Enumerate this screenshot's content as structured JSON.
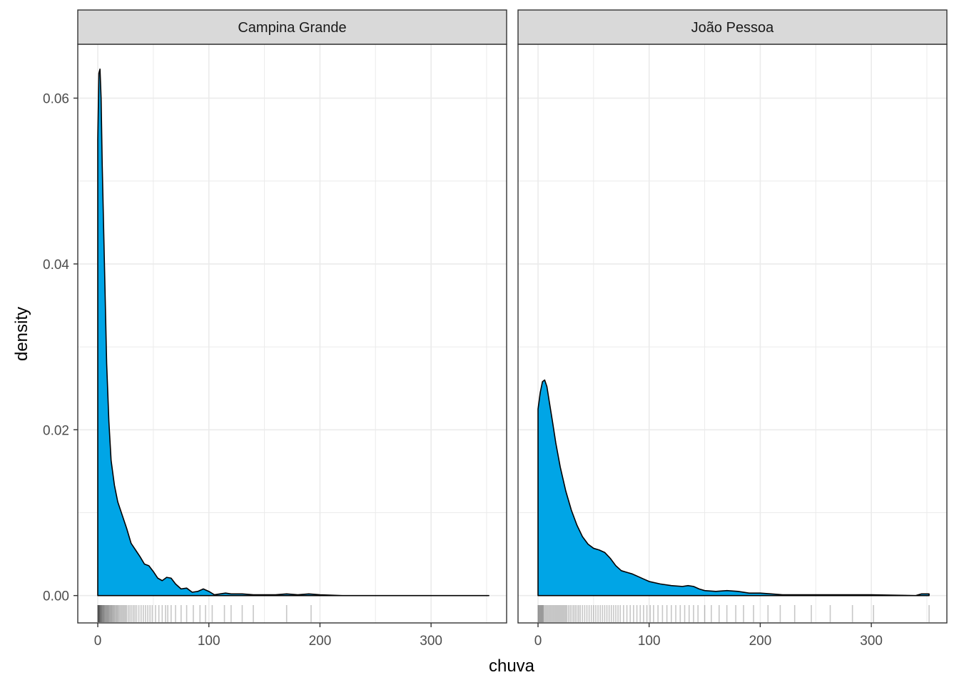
{
  "chart_data": {
    "type": "area",
    "chart_kind": "density with rug, faceted",
    "xlabel": "chuva",
    "ylabel": "density",
    "xlim": [
      -18,
      368
    ],
    "ylim": [
      -0.0033,
      0.0665
    ],
    "x_ticks": [
      0,
      100,
      200,
      300
    ],
    "y_ticks": [
      0,
      0.02,
      0.04,
      0.06
    ],
    "y_tick_labels": [
      "0.00",
      "0.02",
      "0.04",
      "0.06"
    ],
    "grid": true,
    "fill_color": "#00A5E6",
    "line_color": "#000000",
    "strip_fill": "#D9D9D9",
    "panels": [
      {
        "facet": "Campina Grande",
        "density": [
          [
            0,
            0.055
          ],
          [
            1,
            0.063
          ],
          [
            2,
            0.0635
          ],
          [
            3,
            0.06
          ],
          [
            4,
            0.052
          ],
          [
            6,
            0.04
          ],
          [
            8,
            0.028
          ],
          [
            10,
            0.021
          ],
          [
            12,
            0.0163
          ],
          [
            15,
            0.0133
          ],
          [
            18,
            0.0113
          ],
          [
            22,
            0.0097
          ],
          [
            26,
            0.0081
          ],
          [
            30,
            0.0063
          ],
          [
            34,
            0.0055
          ],
          [
            38,
            0.0047
          ],
          [
            42,
            0.0038
          ],
          [
            46,
            0.0036
          ],
          [
            50,
            0.0029
          ],
          [
            54,
            0.0021
          ],
          [
            58,
            0.0018
          ],
          [
            62,
            0.0022
          ],
          [
            66,
            0.0021
          ],
          [
            70,
            0.0014
          ],
          [
            75,
            0.0008
          ],
          [
            80,
            0.0009
          ],
          [
            85,
            0.0004
          ],
          [
            90,
            0.0005
          ],
          [
            95,
            0.0008
          ],
          [
            100,
            0.0005
          ],
          [
            105,
            0.0001
          ],
          [
            110,
            0.0002
          ],
          [
            115,
            0.0003
          ],
          [
            120,
            0.0002
          ],
          [
            130,
            0.0002
          ],
          [
            140,
            0.0001
          ],
          [
            160,
            0.0001
          ],
          [
            170,
            0.0002
          ],
          [
            180,
            0.0001
          ],
          [
            190,
            0.0002
          ],
          [
            200,
            0.0001
          ],
          [
            220,
            0.0
          ],
          [
            260,
            0.0
          ],
          [
            300,
            0.0
          ],
          [
            352,
            0.0
          ]
        ],
        "rug": [
          0,
          0.2,
          0.4,
          0.6,
          0.8,
          1,
          1.2,
          1.5,
          1.8,
          2,
          2.3,
          2.6,
          3,
          3.3,
          3.6,
          4,
          4.4,
          4.8,
          5.2,
          5.6,
          6,
          6.5,
          7,
          7.5,
          8,
          8.5,
          9,
          9.5,
          10,
          10.6,
          11.2,
          11.8,
          12.4,
          13,
          13.7,
          14.4,
          15,
          15.8,
          16.6,
          17.4,
          18.2,
          19,
          20,
          21,
          22,
          23,
          24,
          25,
          26,
          27.5,
          29,
          30.5,
          32,
          33.5,
          35,
          37,
          39,
          41,
          43,
          45,
          47,
          49,
          52,
          55,
          58,
          61,
          63,
          66,
          70,
          75,
          80,
          86,
          92,
          97,
          103,
          114,
          120,
          130,
          140,
          170,
          192
        ]
      },
      {
        "facet": "João Pessoa",
        "density": [
          [
            0,
            0.0225
          ],
          [
            2,
            0.0245
          ],
          [
            4,
            0.0258
          ],
          [
            6,
            0.026
          ],
          [
            8,
            0.0252
          ],
          [
            10,
            0.0235
          ],
          [
            13,
            0.021
          ],
          [
            16,
            0.0184
          ],
          [
            20,
            0.0155
          ],
          [
            25,
            0.0126
          ],
          [
            30,
            0.0103
          ],
          [
            35,
            0.0085
          ],
          [
            40,
            0.0071
          ],
          [
            45,
            0.0062
          ],
          [
            50,
            0.0057
          ],
          [
            55,
            0.0055
          ],
          [
            60,
            0.0052
          ],
          [
            65,
            0.0045
          ],
          [
            70,
            0.0036
          ],
          [
            75,
            0.003
          ],
          [
            80,
            0.0028
          ],
          [
            85,
            0.0026
          ],
          [
            90,
            0.0023
          ],
          [
            95,
            0.002
          ],
          [
            100,
            0.0017
          ],
          [
            110,
            0.0014
          ],
          [
            120,
            0.0012
          ],
          [
            130,
            0.0011
          ],
          [
            135,
            0.0012
          ],
          [
            140,
            0.0011
          ],
          [
            145,
            0.0008
          ],
          [
            150,
            0.0006
          ],
          [
            160,
            0.0005
          ],
          [
            170,
            0.0006
          ],
          [
            180,
            0.0005
          ],
          [
            190,
            0.0003
          ],
          [
            200,
            0.0003
          ],
          [
            210,
            0.0002
          ],
          [
            220,
            0.0001
          ],
          [
            240,
            0.0001
          ],
          [
            260,
            0.0001
          ],
          [
            300,
            0.0001
          ],
          [
            340,
            0.0
          ],
          [
            345,
            0.0002
          ],
          [
            352,
            0.0002
          ]
        ],
        "rug": [
          0,
          0.5,
          1,
          1.5,
          2,
          2.5,
          3,
          3.5,
          4,
          4.5,
          5,
          6,
          7,
          8,
          9,
          10,
          11,
          12,
          13,
          14,
          15,
          16,
          17,
          18,
          19,
          20,
          21,
          22,
          23,
          24,
          25,
          26,
          27.5,
          29,
          30.5,
          32,
          33.5,
          35,
          36.5,
          38,
          40,
          42,
          44,
          46,
          48,
          50,
          52,
          54,
          56,
          58,
          60,
          62,
          64,
          66,
          68,
          70,
          72,
          74,
          77,
          80,
          83,
          86,
          89,
          92,
          95,
          98,
          101,
          104,
          108,
          112,
          116,
          120,
          124,
          128,
          132,
          136,
          140,
          144,
          150,
          156,
          163,
          170,
          178,
          185,
          194,
          207,
          218,
          231,
          246,
          263,
          283,
          302,
          352
        ]
      }
    ]
  }
}
